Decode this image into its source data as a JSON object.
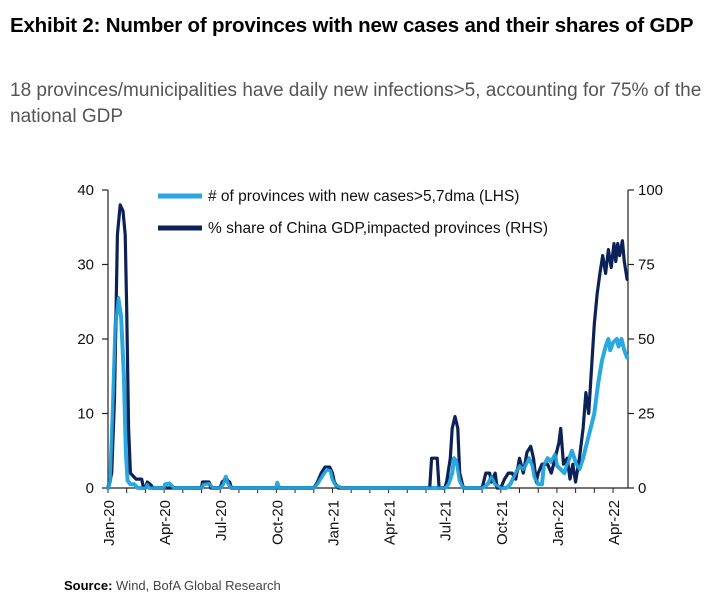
{
  "header": {
    "title": "Exhibit 2: Number of provinces with new cases and their shares of GDP",
    "subtitle": "18 provinces/municipalities have daily new infections>5, accounting for 75% of the national GDP"
  },
  "footer": {
    "source_label": "Source:",
    "source_text": "Wind, BofA Global Research"
  },
  "chart_data": {
    "type": "line",
    "ylim_left": [
      0,
      40
    ],
    "ylim_right": [
      0,
      100
    ],
    "yticks_left": [
      "0",
      "10",
      "20",
      "30",
      "40"
    ],
    "yticks_right": [
      "0",
      "25",
      "50",
      "75",
      "100"
    ],
    "xlabels": [
      "Jan-20",
      "Apr-20",
      "Jul-20",
      "Oct-20",
      "Jan-21",
      "Apr-21",
      "Jul-21",
      "Oct-21",
      "Jan-22",
      "Apr-22"
    ],
    "xlabel_positions": [
      0,
      3,
      6,
      9,
      12,
      15,
      18,
      21,
      24,
      27
    ],
    "x_max": 27.8,
    "legend_position": "top",
    "grid": false,
    "series": [
      {
        "name": "# of provinces with  new cases>5,7dma (LHS)",
        "axis": "left",
        "color": "#29a8e0",
        "points": [
          [
            0.0,
            0
          ],
          [
            0.12,
            1
          ],
          [
            0.25,
            10
          ],
          [
            0.4,
            22
          ],
          [
            0.55,
            25.5
          ],
          [
            0.7,
            23
          ],
          [
            0.85,
            15
          ],
          [
            0.95,
            5
          ],
          [
            1.05,
            1
          ],
          [
            1.2,
            0.5
          ],
          [
            1.4,
            0.5
          ],
          [
            1.6,
            0
          ],
          [
            1.9,
            0
          ],
          [
            2.0,
            0
          ],
          [
            2.1,
            0.5
          ],
          [
            2.2,
            0
          ],
          [
            3.0,
            0
          ],
          [
            3.05,
            0.5
          ],
          [
            3.3,
            0.6
          ],
          [
            3.5,
            0
          ],
          [
            5.0,
            0
          ],
          [
            5.1,
            0.5
          ],
          [
            5.4,
            0.6
          ],
          [
            5.6,
            0
          ],
          [
            6.0,
            0
          ],
          [
            6.15,
            0.5
          ],
          [
            6.3,
            1.5
          ],
          [
            6.45,
            0.5
          ],
          [
            6.6,
            0
          ],
          [
            9.0,
            0
          ],
          [
            9.05,
            0.7
          ],
          [
            9.15,
            0
          ],
          [
            11.0,
            0
          ],
          [
            11.2,
            0.6
          ],
          [
            11.5,
            1.8
          ],
          [
            11.7,
            2.5
          ],
          [
            11.9,
            2.3
          ],
          [
            12.0,
            1.2
          ],
          [
            12.2,
            0.3
          ],
          [
            12.5,
            0
          ],
          [
            18.0,
            0
          ],
          [
            18.2,
            0.5
          ],
          [
            18.4,
            2
          ],
          [
            18.5,
            4
          ],
          [
            18.65,
            3.5
          ],
          [
            18.8,
            1
          ],
          [
            19.0,
            0
          ],
          [
            20.0,
            0
          ],
          [
            20.3,
            0.5
          ],
          [
            20.5,
            1.5
          ],
          [
            20.7,
            0.5
          ],
          [
            21.0,
            0
          ],
          [
            21.3,
            0
          ],
          [
            21.5,
            0.5
          ],
          [
            21.8,
            2
          ],
          [
            22.0,
            3
          ],
          [
            22.2,
            2.5
          ],
          [
            22.5,
            4
          ],
          [
            22.7,
            3
          ],
          [
            22.8,
            1.5
          ],
          [
            23.0,
            0.5
          ],
          [
            23.2,
            0.5
          ],
          [
            23.3,
            3
          ],
          [
            23.5,
            4
          ],
          [
            23.7,
            3.5
          ],
          [
            23.9,
            4.5
          ],
          [
            24.0,
            3
          ],
          [
            24.2,
            2.5
          ],
          [
            24.4,
            2
          ],
          [
            24.6,
            3.5
          ],
          [
            24.8,
            5
          ],
          [
            25.0,
            3.5
          ],
          [
            25.2,
            2.5
          ],
          [
            25.4,
            4
          ],
          [
            25.6,
            6
          ],
          [
            25.8,
            8
          ],
          [
            26.0,
            10
          ],
          [
            26.2,
            14
          ],
          [
            26.4,
            17
          ],
          [
            26.6,
            19
          ],
          [
            26.75,
            20
          ],
          [
            26.85,
            18.5
          ],
          [
            27.0,
            19.5
          ],
          [
            27.2,
            20
          ],
          [
            27.3,
            19
          ],
          [
            27.45,
            20
          ],
          [
            27.6,
            18.5
          ],
          [
            27.75,
            17.5
          ]
        ]
      },
      {
        "name": "% share of China GDP,impacted provinces (RHS)",
        "axis": "right",
        "color": "#0c2157",
        "points": [
          [
            0.0,
            0
          ],
          [
            0.2,
            5
          ],
          [
            0.35,
            30
          ],
          [
            0.5,
            85
          ],
          [
            0.65,
            95
          ],
          [
            0.8,
            93
          ],
          [
            0.92,
            85
          ],
          [
            1.0,
            60
          ],
          [
            1.1,
            20
          ],
          [
            1.2,
            5
          ],
          [
            1.5,
            3
          ],
          [
            1.8,
            3
          ],
          [
            1.9,
            0
          ],
          [
            2.0,
            0
          ],
          [
            2.1,
            2
          ],
          [
            2.3,
            1
          ],
          [
            2.4,
            0
          ],
          [
            5.0,
            0
          ],
          [
            5.05,
            2
          ],
          [
            5.4,
            2
          ],
          [
            5.5,
            0
          ],
          [
            6.0,
            0
          ],
          [
            6.1,
            2
          ],
          [
            6.3,
            3
          ],
          [
            6.5,
            2
          ],
          [
            6.6,
            0
          ],
          [
            11.0,
            0
          ],
          [
            11.2,
            2
          ],
          [
            11.4,
            5
          ],
          [
            11.6,
            7
          ],
          [
            11.85,
            7
          ],
          [
            12.0,
            5
          ],
          [
            12.1,
            2
          ],
          [
            12.3,
            0
          ],
          [
            17.2,
            0
          ],
          [
            17.3,
            10
          ],
          [
            17.6,
            10
          ],
          [
            17.7,
            0
          ],
          [
            18.0,
            0
          ],
          [
            18.1,
            2
          ],
          [
            18.3,
            10
          ],
          [
            18.4,
            20
          ],
          [
            18.55,
            24
          ],
          [
            18.7,
            20
          ],
          [
            18.8,
            5
          ],
          [
            19.0,
            0
          ],
          [
            20.0,
            0
          ],
          [
            20.2,
            5
          ],
          [
            20.4,
            5
          ],
          [
            20.5,
            2
          ],
          [
            20.7,
            5
          ],
          [
            20.8,
            0
          ],
          [
            21.0,
            0
          ],
          [
            21.2,
            3
          ],
          [
            21.4,
            5
          ],
          [
            21.6,
            5
          ],
          [
            21.8,
            3
          ],
          [
            22.0,
            10
          ],
          [
            22.2,
            5
          ],
          [
            22.4,
            12
          ],
          [
            22.6,
            14
          ],
          [
            22.75,
            10
          ],
          [
            22.9,
            2
          ],
          [
            23.0,
            5
          ],
          [
            23.2,
            8
          ],
          [
            23.5,
            8
          ],
          [
            23.7,
            5
          ],
          [
            23.9,
            10
          ],
          [
            24.1,
            15
          ],
          [
            24.2,
            20
          ],
          [
            24.35,
            8
          ],
          [
            24.55,
            10
          ],
          [
            24.7,
            3
          ],
          [
            24.85,
            8
          ],
          [
            25.0,
            2
          ],
          [
            25.2,
            10
          ],
          [
            25.4,
            20
          ],
          [
            25.55,
            32
          ],
          [
            25.7,
            25
          ],
          [
            25.85,
            40
          ],
          [
            26.0,
            55
          ],
          [
            26.15,
            65
          ],
          [
            26.3,
            72
          ],
          [
            26.45,
            78
          ],
          [
            26.6,
            72
          ],
          [
            26.75,
            80
          ],
          [
            26.9,
            74
          ],
          [
            27.05,
            82
          ],
          [
            27.15,
            76
          ],
          [
            27.25,
            82
          ],
          [
            27.35,
            78
          ],
          [
            27.5,
            83
          ],
          [
            27.6,
            76
          ],
          [
            27.75,
            70
          ]
        ]
      }
    ]
  }
}
